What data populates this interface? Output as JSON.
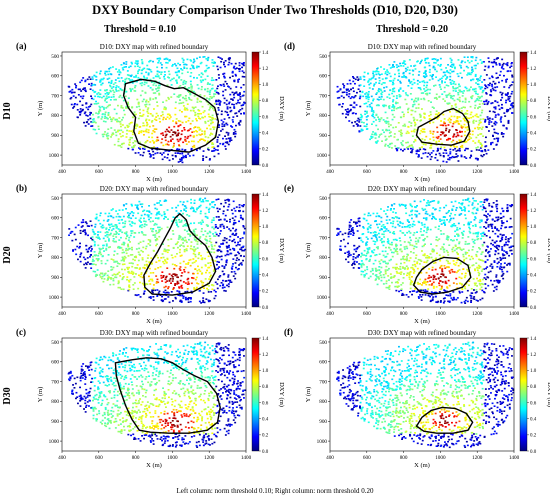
{
  "figure": {
    "title": "DXY Boundary Comparison Under Two Thresholds (D10, D20, D30)",
    "col_headers": [
      "Threshold = 0.10",
      "Threshold = 0.20"
    ],
    "row_labels": [
      "D10",
      "D20",
      "D30"
    ],
    "footer": "Left column: norm threshold 0.10; Right column: norm threshold 0.20"
  },
  "chart_data": [
    {
      "type": "heatmap",
      "panel": "(a)",
      "title": "D10: DXY map with refined boundary",
      "xlabel": "X (m)",
      "ylabel": "Y (m)",
      "colorbar_label": "DXY (m)",
      "xlim": [
        400,
        1400
      ],
      "ylim": [
        1050,
        480
      ],
      "xticks": [
        400,
        600,
        800,
        1000,
        1200,
        1400
      ],
      "yticks": [
        500,
        600,
        700,
        800,
        900,
        1000
      ],
      "clim": [
        0,
        1.4
      ],
      "cticks": [
        0.0,
        0.2,
        0.4,
        0.6,
        0.8,
        1.0,
        1.2,
        1.4
      ],
      "threshold": 0.1,
      "boundary": [
        [
          745,
          640
        ],
        [
          830,
          618
        ],
        [
          905,
          628
        ],
        [
          960,
          650
        ],
        [
          1010,
          665
        ],
        [
          1060,
          660
        ],
        [
          1120,
          690
        ],
        [
          1180,
          720
        ],
        [
          1230,
          760
        ],
        [
          1250,
          830
        ],
        [
          1235,
          910
        ],
        [
          1180,
          950
        ],
        [
          1090,
          985
        ],
        [
          980,
          975
        ],
        [
          880,
          965
        ],
        [
          815,
          940
        ],
        [
          790,
          880
        ],
        [
          800,
          810
        ],
        [
          760,
          760
        ],
        [
          735,
          700
        ]
      ]
    },
    {
      "type": "heatmap",
      "panel": "(b)",
      "title": "D20: DXY map with refined boundary",
      "xlabel": "X (m)",
      "ylabel": "Y (m)",
      "colorbar_label": "DXY (m)",
      "xlim": [
        400,
        1400
      ],
      "ylim": [
        1050,
        480
      ],
      "xticks": [
        400,
        600,
        800,
        1000,
        1200,
        1400
      ],
      "yticks": [
        500,
        600,
        700,
        800,
        900,
        1000
      ],
      "clim": [
        0,
        1.4
      ],
      "cticks": [
        0.0,
        0.2,
        0.4,
        0.6,
        0.8,
        1.0,
        1.2,
        1.4
      ],
      "threshold": 0.1,
      "boundary": [
        [
          1040,
          580
        ],
        [
          1075,
          610
        ],
        [
          1095,
          665
        ],
        [
          1130,
          700
        ],
        [
          1180,
          740
        ],
        [
          1215,
          800
        ],
        [
          1235,
          870
        ],
        [
          1200,
          930
        ],
        [
          1110,
          975
        ],
        [
          1000,
          990
        ],
        [
          890,
          985
        ],
        [
          850,
          950
        ],
        [
          845,
          890
        ],
        [
          880,
          830
        ],
        [
          920,
          770
        ],
        [
          955,
          710
        ],
        [
          990,
          650
        ],
        [
          1015,
          600
        ]
      ]
    },
    {
      "type": "heatmap",
      "panel": "(c)",
      "title": "D30: DXY map with refined boundary",
      "xlabel": "X (m)",
      "ylabel": "Y (m)",
      "colorbar_label": "DXY (m)",
      "xlim": [
        400,
        1400
      ],
      "ylim": [
        1050,
        480
      ],
      "xticks": [
        400,
        600,
        800,
        1000,
        1200,
        1400
      ],
      "yticks": [
        500,
        600,
        700,
        800,
        900,
        1000
      ],
      "clim": [
        0,
        1.4
      ],
      "cticks": [
        0.0,
        0.2,
        0.4,
        0.6,
        0.8,
        1.0,
        1.2,
        1.4
      ],
      "threshold": 0.1,
      "boundary": [
        [
          690,
          605
        ],
        [
          780,
          590
        ],
        [
          860,
          580
        ],
        [
          940,
          585
        ],
        [
          1000,
          605
        ],
        [
          1060,
          640
        ],
        [
          1120,
          670
        ],
        [
          1190,
          700
        ],
        [
          1240,
          760
        ],
        [
          1260,
          830
        ],
        [
          1245,
          905
        ],
        [
          1190,
          945
        ],
        [
          1090,
          960
        ],
        [
          980,
          960
        ],
        [
          880,
          955
        ],
        [
          820,
          945
        ],
        [
          780,
          890
        ],
        [
          745,
          820
        ],
        [
          715,
          740
        ],
        [
          695,
          670
        ]
      ]
    },
    {
      "type": "heatmap",
      "panel": "(d)",
      "title": "D10: DXY map with refined boundary",
      "xlabel": "X (m)",
      "ylabel": "Y (m)",
      "colorbar_label": "DXY (m)",
      "xlim": [
        400,
        1400
      ],
      "ylim": [
        1050,
        480
      ],
      "xticks": [
        400,
        600,
        800,
        1000,
        1200,
        1400
      ],
      "yticks": [
        500,
        600,
        700,
        800,
        900,
        1000
      ],
      "clim": [
        0,
        1.4
      ],
      "cticks": [
        0.0,
        0.2,
        0.4,
        0.6,
        0.8,
        1.0,
        1.2,
        1.4
      ],
      "threshold": 0.2,
      "boundary": [
        [
          1020,
          780
        ],
        [
          1070,
          765
        ],
        [
          1120,
          790
        ],
        [
          1150,
          830
        ],
        [
          1160,
          880
        ],
        [
          1130,
          930
        ],
        [
          1060,
          950
        ],
        [
          980,
          945
        ],
        [
          900,
          935
        ],
        [
          870,
          900
        ],
        [
          880,
          860
        ],
        [
          930,
          835
        ],
        [
          980,
          810
        ]
      ]
    },
    {
      "type": "heatmap",
      "panel": "(e)",
      "title": "D20: DXY map with refined boundary",
      "xlabel": "X (m)",
      "ylabel": "Y (m)",
      "colorbar_label": "DXY (m)",
      "xlim": [
        400,
        1400
      ],
      "ylim": [
        1050,
        480
      ],
      "xticks": [
        400,
        600,
        800,
        1000,
        1200,
        1400
      ],
      "yticks": [
        500,
        600,
        700,
        800,
        900,
        1000
      ],
      "clim": [
        0,
        1.4
      ],
      "cticks": [
        0.0,
        0.2,
        0.4,
        0.6,
        0.8,
        1.0,
        1.2,
        1.4
      ],
      "threshold": 0.2,
      "boundary": [
        [
          900,
          860
        ],
        [
          960,
          820
        ],
        [
          1020,
          800
        ],
        [
          1090,
          805
        ],
        [
          1150,
          840
        ],
        [
          1165,
          900
        ],
        [
          1120,
          950
        ],
        [
          1040,
          975
        ],
        [
          960,
          985
        ],
        [
          890,
          975
        ],
        [
          855,
          940
        ],
        [
          870,
          900
        ]
      ]
    },
    {
      "type": "heatmap",
      "panel": "(f)",
      "title": "D30: DXY map with refined boundary",
      "xlabel": "X (m)",
      "ylabel": "Y (m)",
      "colorbar_label": "DXY (m)",
      "xlim": [
        400,
        1400
      ],
      "ylim": [
        1050,
        480
      ],
      "xticks": [
        400,
        600,
        800,
        1000,
        1200,
        1400
      ],
      "yticks": [
        500,
        600,
        700,
        800,
        900,
        1000
      ],
      "clim": [
        0,
        1.4
      ],
      "cticks": [
        0.0,
        0.2,
        0.4,
        0.6,
        0.8,
        1.0,
        1.2,
        1.4
      ],
      "threshold": 0.2,
      "boundary": [
        [
          900,
          880
        ],
        [
          950,
          845
        ],
        [
          1010,
          830
        ],
        [
          1080,
          835
        ],
        [
          1140,
          860
        ],
        [
          1175,
          905
        ],
        [
          1150,
          945
        ],
        [
          1070,
          960
        ],
        [
          980,
          960
        ],
        [
          910,
          950
        ],
        [
          870,
          925
        ]
      ]
    }
  ]
}
